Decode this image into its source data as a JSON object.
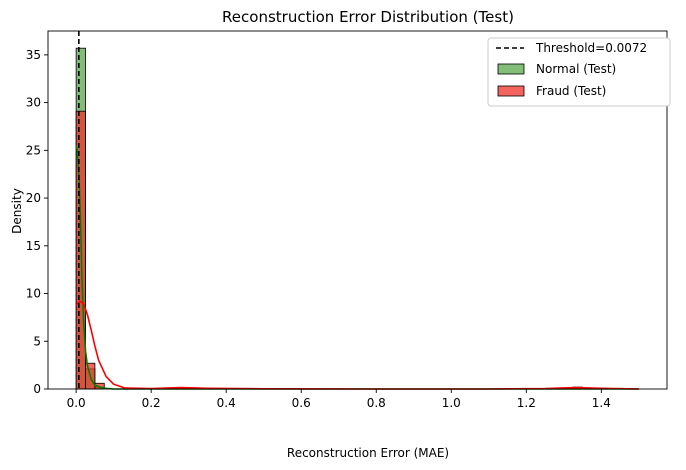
{
  "chart_data": {
    "type": "histogram",
    "title": "Reconstruction Error Distribution (Test)",
    "xlabel": "Reconstruction Error (MAE)",
    "ylabel": "Density",
    "xlim": [
      -0.075,
      1.575
    ],
    "ylim": [
      0,
      37.5
    ],
    "xticks": [
      0.0,
      0.2,
      0.4,
      0.6,
      0.8,
      1.0,
      1.2,
      1.4
    ],
    "xtick_labels": [
      "0.0",
      "0.2",
      "0.4",
      "0.6",
      "0.8",
      "1.0",
      "1.2",
      "1.4"
    ],
    "yticks": [
      0,
      5,
      10,
      15,
      20,
      25,
      30,
      35
    ],
    "ytick_labels": [
      "0",
      "5",
      "10",
      "15",
      "20",
      "25",
      "30",
      "35"
    ],
    "grid": false,
    "legend_position": "top-right",
    "threshold": {
      "value": 0.0072,
      "label": "Threshold=0.0072",
      "color": "#000000",
      "style": "dashed"
    },
    "series": [
      {
        "name": "Normal (Test)",
        "color": "#59a84b",
        "fill_opacity": 0.75,
        "kde_color": "#008000",
        "bins": [
          {
            "x0": 0.0,
            "x1": 0.025,
            "value": 35.7
          },
          {
            "x0": 0.025,
            "x1": 0.05,
            "value": 2.1
          },
          {
            "x0": 0.05,
            "x1": 0.075,
            "value": 0.2
          }
        ],
        "kde": [
          [
            0.0,
            25.5
          ],
          [
            0.003,
            25.0
          ],
          [
            0.008,
            22.0
          ],
          [
            0.012,
            17.0
          ],
          [
            0.016,
            11.0
          ],
          [
            0.02,
            7.0
          ],
          [
            0.025,
            4.0
          ],
          [
            0.03,
            2.5
          ],
          [
            0.04,
            1.0
          ],
          [
            0.05,
            0.4
          ],
          [
            0.07,
            0.1
          ],
          [
            0.1,
            0.0
          ],
          [
            1.5,
            0.0
          ]
        ]
      },
      {
        "name": "Fraud (Test)",
        "color": "#f0302a",
        "fill_opacity": 0.75,
        "kde_color": "#ff0000",
        "bins": [
          {
            "x0": 0.0,
            "x1": 0.025,
            "value": 29.1
          },
          {
            "x0": 0.025,
            "x1": 0.05,
            "value": 2.7
          },
          {
            "x0": 0.05,
            "x1": 0.075,
            "value": 0.6
          },
          {
            "x0": 1.325,
            "x1": 1.35,
            "value": 0.2
          }
        ],
        "kde": [
          [
            0.0,
            8.8
          ],
          [
            0.01,
            9.2
          ],
          [
            0.02,
            8.9
          ],
          [
            0.03,
            7.8
          ],
          [
            0.04,
            6.2
          ],
          [
            0.05,
            4.5
          ],
          [
            0.06,
            3.0
          ],
          [
            0.08,
            1.3
          ],
          [
            0.1,
            0.5
          ],
          [
            0.13,
            0.1
          ],
          [
            0.2,
            0.05
          ],
          [
            0.28,
            0.15
          ],
          [
            0.35,
            0.08
          ],
          [
            0.5,
            0.02
          ],
          [
            0.8,
            0.0
          ],
          [
            1.1,
            0.0
          ],
          [
            1.25,
            0.05
          ],
          [
            1.33,
            0.15
          ],
          [
            1.4,
            0.08
          ],
          [
            1.5,
            0.0
          ]
        ]
      }
    ]
  }
}
